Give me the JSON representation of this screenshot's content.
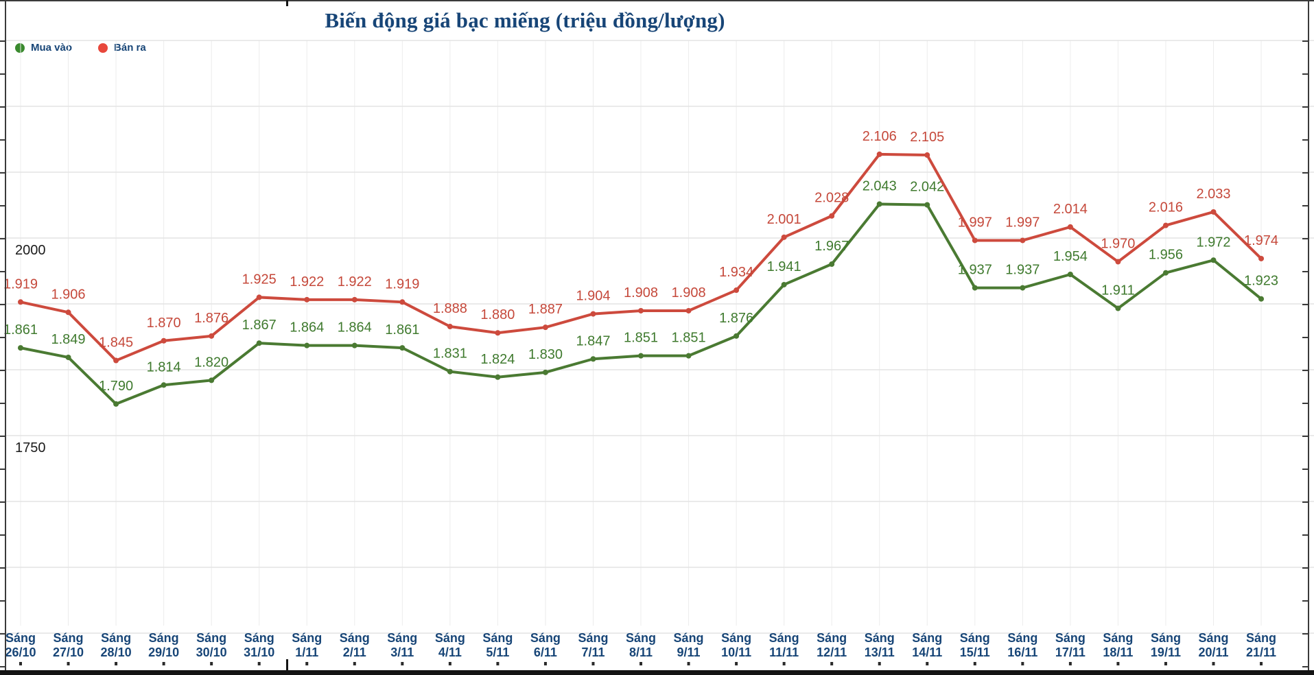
{
  "title": "Biến động giá bạc miếng (triệu đồng/lượng)",
  "legend": {
    "items": [
      {
        "label": "Mua vào",
        "color": "#3a8a2e"
      },
      {
        "label": "Bán ra",
        "color": "#e8473c"
      }
    ]
  },
  "colors": {
    "navy": "#174577",
    "buy_line": "#4a7a32",
    "buy_label": "#3f7a2e",
    "sell_line": "#cd4a3d",
    "sell_label": "#c5483a",
    "grid_h": "#e4e4e4",
    "grid_v": "#ececec",
    "axis_text": "#1a1a1a"
  },
  "chart_data": {
    "type": "line",
    "title": "Biến động giá bạc miếng (triệu đồng/lượng)",
    "x_prefix": "Sáng",
    "categories": [
      "26/10",
      "27/10",
      "28/10",
      "29/10",
      "30/10",
      "31/10",
      "1/11",
      "2/11",
      "3/11",
      "4/11",
      "5/11",
      "6/11",
      "7/11",
      "8/11",
      "9/11",
      "10/11",
      "11/11",
      "12/11",
      "13/11",
      "14/11",
      "15/11",
      "16/11",
      "17/11",
      "18/11",
      "19/11",
      "20/11",
      "21/11"
    ],
    "series": [
      {
        "name": "Mua vào",
        "values": [
          1861,
          1849,
          1790,
          1814,
          1820,
          1867,
          1864,
          1864,
          1861,
          1831,
          1824,
          1830,
          1847,
          1851,
          1851,
          1876,
          1941,
          1967,
          2043,
          2042,
          1937,
          1937,
          1954,
          1911,
          1956,
          1972,
          1923
        ]
      },
      {
        "name": "Bán ra",
        "values": [
          1919,
          1906,
          1845,
          1870,
          1876,
          1925,
          1922,
          1922,
          1919,
          1888,
          1880,
          1887,
          1904,
          1908,
          1908,
          1934,
          2001,
          2028,
          2106,
          2105,
          1997,
          1997,
          2014,
          1970,
          2016,
          2033,
          1974
        ]
      }
    ],
    "y_axis": {
      "ticks": [
        {
          "value": 2000,
          "label": "2000"
        },
        {
          "value": 1750,
          "label": "1750"
        }
      ]
    },
    "grid": true,
    "legend_position": "top-left",
    "data_labels": true,
    "label_format": "thousands-dot"
  }
}
